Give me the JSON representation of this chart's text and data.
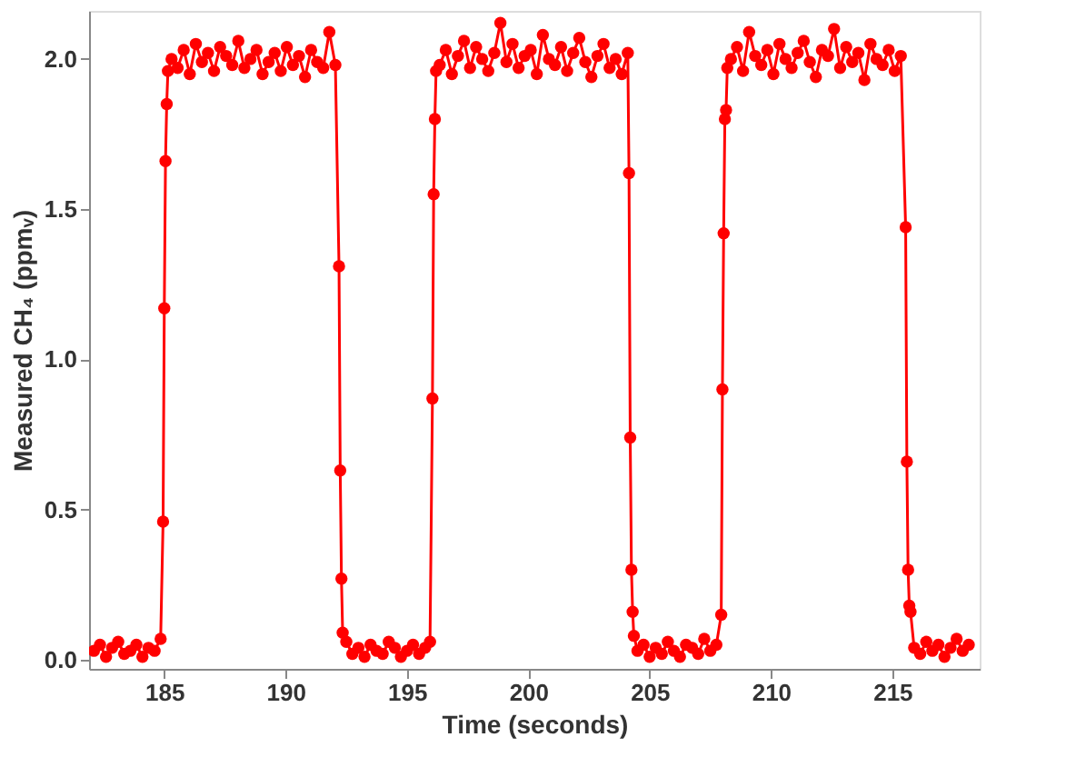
{
  "chart_data": {
    "type": "line",
    "xlabel": "Time (seconds)",
    "ylabel": "Measured CH₄ (ppmᵥ)",
    "xlim": [
      181.9,
      218.6
    ],
    "xticks": [
      185,
      190,
      195,
      200,
      205,
      210,
      215
    ],
    "ylim": [
      -0.03,
      2.16
    ],
    "yticks": [
      {
        "value": 0,
        "label": "0.0"
      },
      {
        "value": 0.5,
        "label": "0.5"
      },
      {
        "value": 1,
        "label": "1.0"
      },
      {
        "value": 1.5,
        "label": "1.5"
      },
      {
        "value": 2,
        "label": "2.0"
      }
    ],
    "grid": false,
    "legend": false,
    "marker": "circle",
    "line_style": "solid",
    "series": [
      {
        "color": "#ff0000",
        "x": [
          182.1,
          182.35,
          182.6,
          182.85,
          183.1,
          183.35,
          183.6,
          183.85,
          184.1,
          184.35,
          184.6,
          184.85,
          184.95,
          185.0,
          185.05,
          185.1,
          185.15,
          185.3,
          185.55,
          185.8,
          186.05,
          186.3,
          186.55,
          186.8,
          187.05,
          187.3,
          187.55,
          187.8,
          188.05,
          188.3,
          188.55,
          188.8,
          189.05,
          189.3,
          189.55,
          189.8,
          190.05,
          190.3,
          190.55,
          190.8,
          191.05,
          191.3,
          191.55,
          191.8,
          192.05,
          192.2,
          192.25,
          192.3,
          192.35,
          192.5,
          192.75,
          193.0,
          193.25,
          193.5,
          193.75,
          194.0,
          194.25,
          194.5,
          194.75,
          195.0,
          195.25,
          195.5,
          195.75,
          195.95,
          196.05,
          196.1,
          196.15,
          196.2,
          196.35,
          196.6,
          196.85,
          197.1,
          197.35,
          197.6,
          197.85,
          198.1,
          198.35,
          198.6,
          198.85,
          199.1,
          199.35,
          199.6,
          199.85,
          200.1,
          200.35,
          200.6,
          200.85,
          201.1,
          201.35,
          201.6,
          201.85,
          202.1,
          202.35,
          202.6,
          202.85,
          203.1,
          203.35,
          203.6,
          203.85,
          204.1,
          204.15,
          204.2,
          204.25,
          204.3,
          204.35,
          204.5,
          204.75,
          205.0,
          205.25,
          205.5,
          205.75,
          206.0,
          206.25,
          206.5,
          206.75,
          207.0,
          207.25,
          207.5,
          207.75,
          207.95,
          208.0,
          208.05,
          208.1,
          208.15,
          208.2,
          208.35,
          208.6,
          208.85,
          209.1,
          209.35,
          209.6,
          209.85,
          210.1,
          210.35,
          210.6,
          210.85,
          211.1,
          211.35,
          211.6,
          211.85,
          212.1,
          212.35,
          212.6,
          212.85,
          213.1,
          213.35,
          213.6,
          213.85,
          214.1,
          214.35,
          214.6,
          214.85,
          215.1,
          215.35,
          215.55,
          215.6,
          215.65,
          215.7,
          215.75,
          215.9,
          216.15,
          216.4,
          216.65,
          216.9,
          217.15,
          217.4,
          217.65,
          217.9,
          218.15
        ],
        "values": [
          0.03,
          0.05,
          0.01,
          0.04,
          0.06,
          0.02,
          0.03,
          0.05,
          0.01,
          0.04,
          0.03,
          0.07,
          0.46,
          1.17,
          1.66,
          1.85,
          1.96,
          2.0,
          1.97,
          2.03,
          1.95,
          2.05,
          1.99,
          2.02,
          1.96,
          2.04,
          2.01,
          1.98,
          2.06,
          1.97,
          2.0,
          2.03,
          1.95,
          1.99,
          2.02,
          1.96,
          2.04,
          1.98,
          2.01,
          1.94,
          2.03,
          1.99,
          1.97,
          2.09,
          1.98,
          1.31,
          0.63,
          0.27,
          0.09,
          0.06,
          0.02,
          0.04,
          0.01,
          0.05,
          0.03,
          0.02,
          0.06,
          0.04,
          0.01,
          0.03,
          0.05,
          0.02,
          0.04,
          0.06,
          0.87,
          1.55,
          1.8,
          1.96,
          1.98,
          2.03,
          1.95,
          2.01,
          2.06,
          1.97,
          2.04,
          2.0,
          1.96,
          2.02,
          2.12,
          1.99,
          2.05,
          1.97,
          2.01,
          2.03,
          1.95,
          2.08,
          2.0,
          1.98,
          2.04,
          1.96,
          2.02,
          2.07,
          1.99,
          1.94,
          2.01,
          2.05,
          1.97,
          2.0,
          1.95,
          2.02,
          1.62,
          0.74,
          0.3,
          0.16,
          0.08,
          0.03,
          0.05,
          0.01,
          0.04,
          0.02,
          0.06,
          0.03,
          0.01,
          0.05,
          0.04,
          0.02,
          0.07,
          0.03,
          0.05,
          0.15,
          0.9,
          1.42,
          1.8,
          1.83,
          1.97,
          2.0,
          2.04,
          1.96,
          2.09,
          2.01,
          1.98,
          2.03,
          1.95,
          2.05,
          2.0,
          1.97,
          2.02,
          2.06,
          1.99,
          1.94,
          2.03,
          2.01,
          2.1,
          1.97,
          2.04,
          1.99,
          2.02,
          1.93,
          2.05,
          2.0,
          1.98,
          2.03,
          1.96,
          2.01,
          1.44,
          0.66,
          0.3,
          0.18,
          0.16,
          0.04,
          0.02,
          0.06,
          0.03,
          0.05,
          0.01,
          0.04,
          0.07,
          0.03,
          0.05
        ]
      }
    ]
  }
}
